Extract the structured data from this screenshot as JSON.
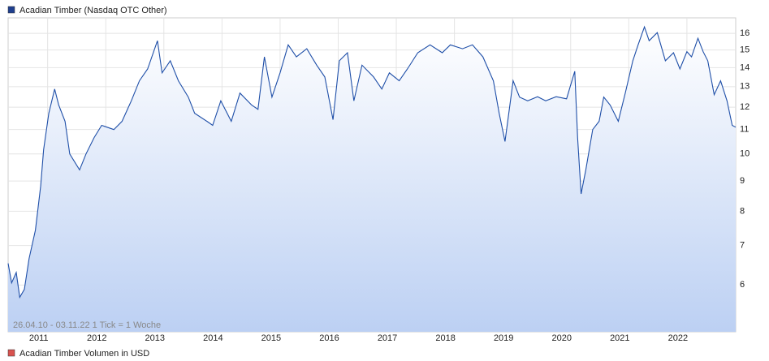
{
  "chart_data": {
    "type": "line",
    "title": "Acadian Timber (Nasdaq OTC Other)",
    "secondary_legend": "Acadian Timber Volumen in USD",
    "secondary_color": "#d9534f",
    "note": "26.04.10 - 03.11.22   1 Tick = 1 Woche",
    "log_scale": true,
    "grid": true,
    "xlim": [
      2010.32,
      2022.84
    ],
    "ylim": [
      5,
      17
    ],
    "xticks": [
      2011,
      2012,
      2013,
      2014,
      2015,
      2016,
      2017,
      2018,
      2019,
      2020,
      2021,
      2022
    ],
    "yticks": [
      6,
      7,
      8,
      9,
      10,
      11,
      12,
      13,
      14,
      15,
      16
    ],
    "series": [
      {
        "name": "Acadian Timber (Nasdaq OTC Other)",
        "color": "#1f4fa8",
        "x": [
          2010.32,
          2010.38,
          2010.46,
          2010.52,
          2010.6,
          2010.68,
          2010.79,
          2010.88,
          2010.93,
          2011.02,
          2011.12,
          2011.19,
          2011.3,
          2011.38,
          2011.55,
          2011.66,
          2011.8,
          2011.93,
          2012.14,
          2012.28,
          2012.44,
          2012.58,
          2012.72,
          2012.89,
          2012.97,
          2013.11,
          2013.25,
          2013.42,
          2013.53,
          2013.74,
          2013.84,
          2013.98,
          2014.16,
          2014.31,
          2014.51,
          2014.62,
          2014.73,
          2014.86,
          2015.0,
          2015.14,
          2015.28,
          2015.46,
          2015.63,
          2015.77,
          2015.91,
          2016.02,
          2016.16,
          2016.27,
          2016.41,
          2016.61,
          2016.75,
          2016.88,
          2017.05,
          2017.19,
          2017.37,
          2017.58,
          2017.79,
          2017.93,
          2018.14,
          2018.31,
          2018.49,
          2018.67,
          2018.77,
          2018.87,
          2019.01,
          2019.12,
          2019.26,
          2019.43,
          2019.57,
          2019.75,
          2019.93,
          2020.07,
          2020.12,
          2020.18,
          2020.26,
          2020.38,
          2020.49,
          2020.57,
          2020.68,
          2020.82,
          2020.94,
          2021.07,
          2021.16,
          2021.27,
          2021.35,
          2021.49,
          2021.63,
          2021.77,
          2021.88,
          2022.0,
          2022.08,
          2022.19,
          2022.28,
          2022.36,
          2022.47,
          2022.58,
          2022.69,
          2022.78,
          2022.84
        ],
        "values": [
          6.53,
          6.05,
          6.3,
          5.72,
          5.9,
          6.65,
          7.43,
          8.83,
          10.17,
          11.72,
          12.88,
          12.1,
          11.36,
          10.0,
          9.4,
          10.0,
          10.66,
          11.18,
          11.0,
          11.36,
          12.3,
          13.3,
          13.93,
          15.55,
          13.72,
          14.38,
          13.3,
          12.48,
          11.72,
          11.36,
          11.18,
          12.3,
          11.36,
          12.68,
          12.1,
          11.9,
          14.6,
          12.48,
          13.72,
          15.3,
          14.6,
          15.07,
          14.14,
          13.5,
          11.43,
          14.38,
          14.84,
          12.3,
          14.14,
          13.5,
          12.88,
          13.72,
          13.3,
          13.93,
          14.84,
          15.3,
          14.84,
          15.3,
          15.07,
          15.3,
          14.6,
          13.3,
          11.72,
          10.5,
          13.3,
          12.48,
          12.3,
          12.5,
          12.3,
          12.5,
          12.4,
          13.8,
          10.66,
          8.56,
          9.4,
          11.0,
          11.36,
          12.48,
          12.1,
          11.36,
          12.68,
          14.38,
          15.3,
          16.41,
          15.55,
          16.05,
          14.38,
          14.84,
          13.93,
          14.9,
          14.6,
          15.7,
          14.9,
          14.38,
          12.6,
          13.3,
          12.3,
          11.18,
          11.1
        ]
      }
    ]
  }
}
